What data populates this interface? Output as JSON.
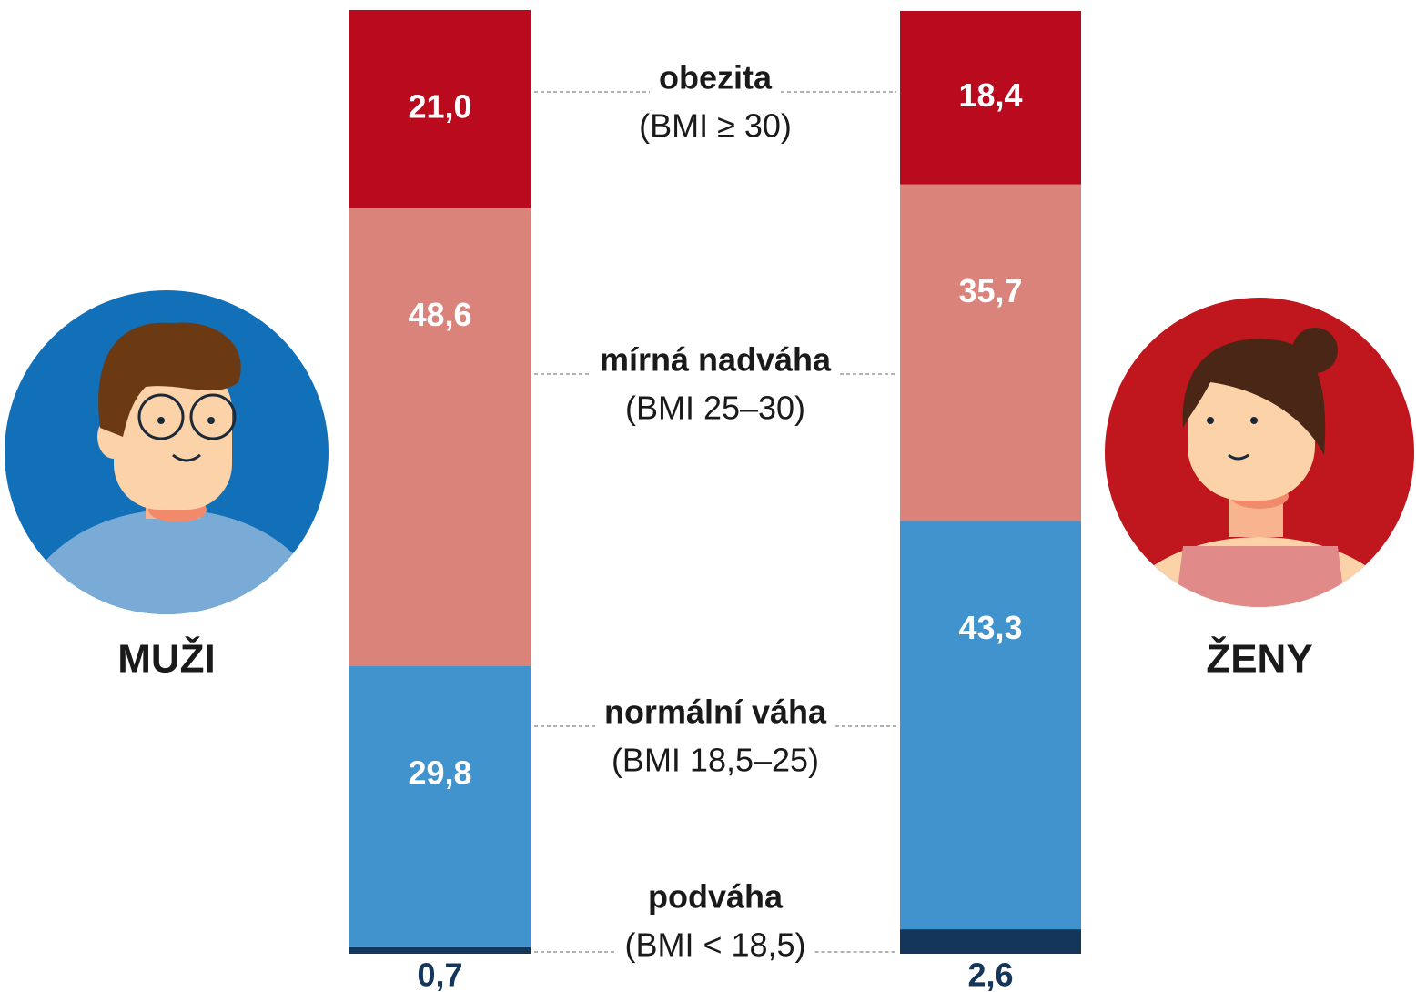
{
  "chart_data": {
    "type": "stacked-bar",
    "categories": [
      "MUŽI",
      "ŽENY"
    ],
    "ylim": [
      0,
      100
    ],
    "series": [
      {
        "name": "podváha",
        "sublabel": "(BMI < 18,5)",
        "color": "#14365a",
        "values": [
          0.7,
          2.6
        ],
        "value_labels": [
          "0,7",
          "2,6"
        ]
      },
      {
        "name": "normální váha",
        "sublabel": "(BMI 18,5–25)",
        "color": "#4193cd",
        "values": [
          29.8,
          43.3
        ],
        "value_labels": [
          "29,8",
          "43,3"
        ]
      },
      {
        "name": "mírná nadváha",
        "sublabel": "(BMI 25–30)",
        "color": "#d9837a",
        "values": [
          48.6,
          35.7
        ],
        "value_labels": [
          "48,6",
          "35,7"
        ]
      },
      {
        "name": "obezita",
        "sublabel": "(BMI ≥ 30)",
        "color": "#b90a1e",
        "values": [
          21.0,
          18.4
        ],
        "value_labels": [
          "21,0",
          "18,4"
        ]
      }
    ]
  }
}
